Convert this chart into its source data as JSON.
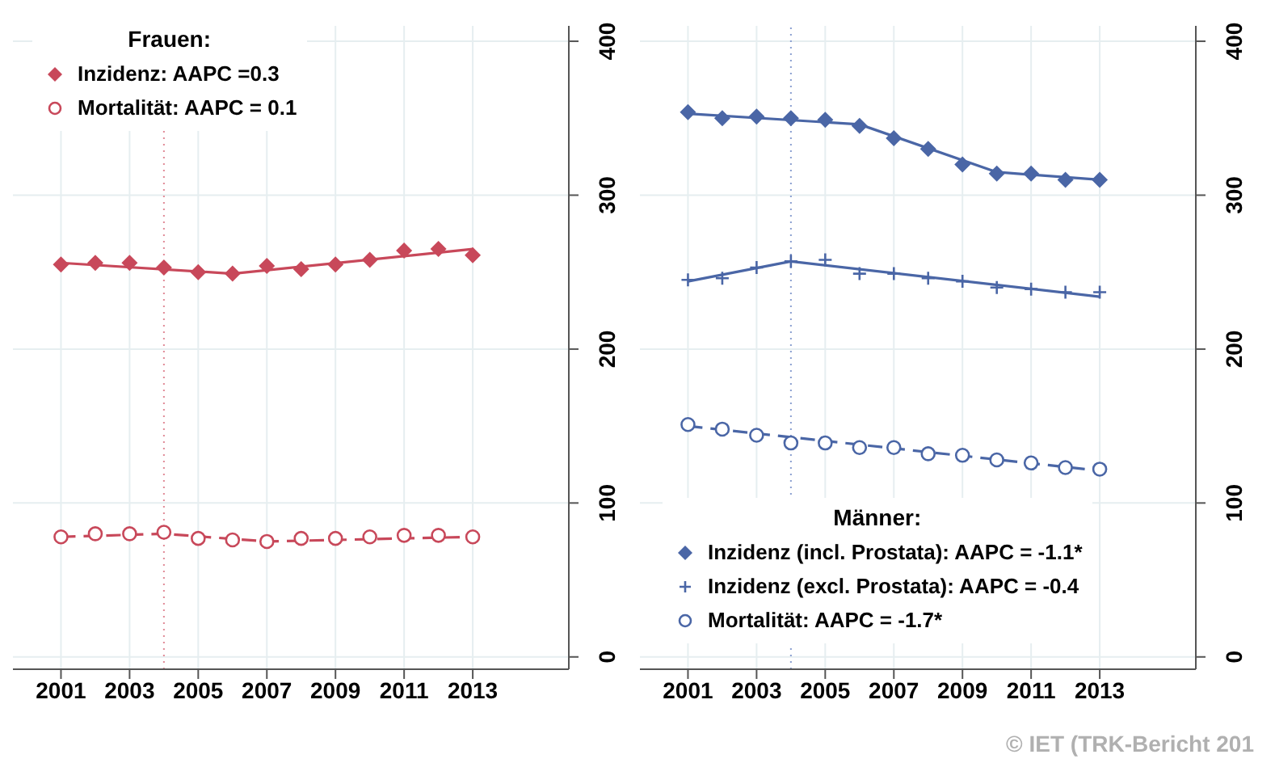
{
  "chart_data": [
    {
      "type": "scatter",
      "legend": "top left",
      "legend_title": "Frauen:",
      "grid": true,
      "xlim": [
        1999.6,
        2015.8
      ],
      "xticks": [
        2001,
        2003,
        2005,
        2007,
        2009,
        2011,
        2013
      ],
      "ylim": [
        -8,
        410
      ],
      "yticks": [
        0,
        100,
        200,
        300,
        400
      ],
      "x": [
        2001,
        2002,
        2003,
        2004,
        2005,
        2006,
        2007,
        2008,
        2009,
        2010,
        2011,
        2012,
        2013
      ],
      "ref_lines": [
        {
          "axis": "x",
          "value": 2004,
          "color": "#e08a96",
          "line_style": "dotted"
        }
      ],
      "series": [
        {
          "name": "Inzidenz: AAPC =0.3",
          "type": "scatter",
          "marker": "diamond",
          "color": "#c8485a",
          "values": [
            255,
            256,
            256,
            253,
            250,
            249,
            254,
            252,
            255,
            258,
            264,
            265,
            261
          ]
        },
        {
          "name": "Mortalität: AAPC = 0.1",
          "type": "scatter",
          "marker": "circle",
          "color": "#c8485a",
          "values": [
            78,
            80,
            80,
            81,
            77,
            76,
            75,
            77,
            77,
            78,
            79,
            79,
            78
          ]
        },
        {
          "type": "line",
          "line_style": "solid",
          "color": "#c8485a",
          "x": [
            2001,
            2006,
            2013
          ],
          "values": [
            256,
            249,
            265
          ]
        },
        {
          "type": "line",
          "line_style": "dashed",
          "color": "#c8485a",
          "x": [
            2001,
            2004,
            2007,
            2013
          ],
          "values": [
            78,
            80,
            75,
            78
          ]
        }
      ]
    },
    {
      "type": "scatter",
      "legend": "bottom left",
      "legend_title": "Männer:",
      "grid": true,
      "xlim": [
        1999.6,
        2015.8
      ],
      "xticks": [
        2001,
        2003,
        2005,
        2007,
        2009,
        2011,
        2013
      ],
      "ylim": [
        -8,
        410
      ],
      "yticks": [
        0,
        100,
        200,
        300,
        400
      ],
      "x": [
        2001,
        2002,
        2003,
        2004,
        2005,
        2006,
        2007,
        2008,
        2009,
        2010,
        2011,
        2012,
        2013
      ],
      "ref_lines": [
        {
          "axis": "x",
          "value": 2004,
          "color": "#8a9fd0",
          "line_style": "dotted"
        }
      ],
      "annotations": [
        "© IET (TRK-Bericht 201"
      ],
      "series": [
        {
          "name": "Inzidenz (incl. Prostata): AAPC = -1.1*",
          "type": "scatter",
          "marker": "diamond",
          "color": "#4a66a6",
          "values": [
            354,
            350,
            351,
            350,
            349,
            345,
            337,
            330,
            320,
            314,
            314,
            310,
            310
          ]
        },
        {
          "name": "Inzidenz (excl. Prostata): AAPC = -0.4",
          "type": "scatter",
          "marker": "cross",
          "color": "#4a66a6",
          "values": [
            245,
            246,
            253,
            257,
            258,
            249,
            249,
            246,
            244,
            240,
            239,
            237,
            237
          ]
        },
        {
          "name": "Mortalität: AAPC = -1.7*",
          "type": "scatter",
          "marker": "circle",
          "color": "#4a66a6",
          "values": [
            151,
            148,
            144,
            139,
            139,
            136,
            136,
            132,
            131,
            128,
            126,
            123,
            122
          ]
        },
        {
          "type": "line",
          "line_style": "solid",
          "color": "#4a66a6",
          "x": [
            2001,
            2006,
            2010,
            2013
          ],
          "values": [
            353,
            346,
            315,
            310
          ]
        },
        {
          "type": "line",
          "line_style": "solid",
          "color": "#4a66a6",
          "x": [
            2001,
            2004,
            2013
          ],
          "values": [
            244,
            257,
            234
          ]
        },
        {
          "type": "line",
          "line_style": "dashed",
          "color": "#4a66a6",
          "x": [
            2001,
            2013
          ],
          "values": [
            150,
            121
          ]
        }
      ]
    }
  ]
}
